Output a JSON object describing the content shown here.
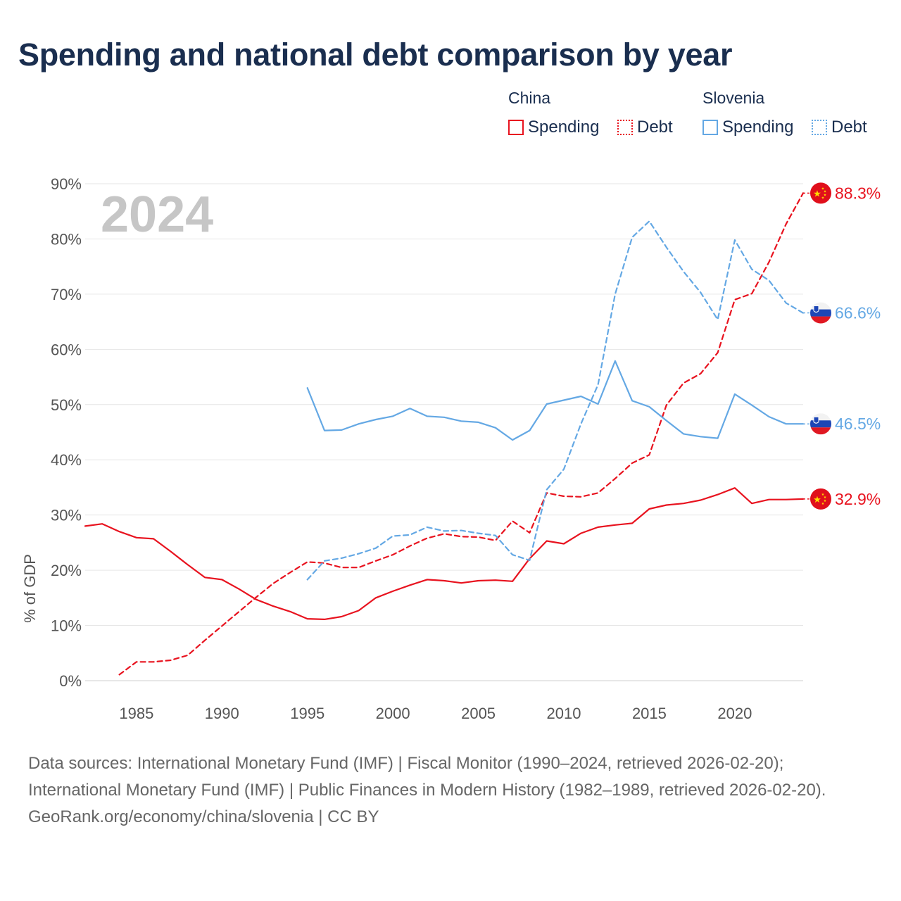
{
  "title": "Spending and national debt comparison by year",
  "legend": {
    "groups": [
      {
        "name": "China",
        "spending": "Spending",
        "debt": "Debt"
      },
      {
        "name": "Slovenia",
        "spending": "Spending",
        "debt": "Debt"
      }
    ]
  },
  "colors": {
    "china": "#e8131f",
    "slovenia": "#64a8e4",
    "title": "#1a2e4f"
  },
  "footer": {
    "sources": "Data sources: International Monetary Fund (IMF) | Fiscal Monitor (1990–2024, retrieved 2026-02-20); International Monetary Fund (IMF) | Public Finances in Modern History (1982–1989, retrieved 2026-02-20).",
    "credit": "GeoRank.org/economy/china/slovenia | CC BY"
  },
  "chart_data": {
    "type": "line",
    "year_label": "2024",
    "ylabel": "% of GDP",
    "ylim": [
      0,
      90
    ],
    "yticks": [
      0,
      10,
      20,
      30,
      40,
      50,
      60,
      70,
      80,
      90
    ],
    "ytick_labels": [
      "0%",
      "10%",
      "20%",
      "30%",
      "40%",
      "50%",
      "60%",
      "70%",
      "80%",
      "90%"
    ],
    "xlim": [
      1982,
      2024
    ],
    "xticks": [
      1985,
      1990,
      1995,
      2000,
      2005,
      2010,
      2015,
      2020
    ],
    "xtick_labels": [
      "1985",
      "1990",
      "1995",
      "2000",
      "2005",
      "2010",
      "2015",
      "2020"
    ],
    "series": [
      {
        "name": "China Spending",
        "country": "China",
        "style": "solid",
        "end_label": "32.9%",
        "flag": "china-flag",
        "x": [
          1982,
          1983,
          1984,
          1985,
          1986,
          1987,
          1988,
          1989,
          1990,
          1991,
          1992,
          1993,
          1994,
          1995,
          1996,
          1997,
          1998,
          1999,
          2000,
          2001,
          2002,
          2003,
          2004,
          2005,
          2006,
          2007,
          2008,
          2009,
          2010,
          2011,
          2012,
          2013,
          2014,
          2015,
          2016,
          2017,
          2018,
          2019,
          2020,
          2021,
          2022,
          2023,
          2024
        ],
        "y": [
          28.0,
          28.4,
          27.0,
          25.9,
          25.7,
          23.4,
          21.0,
          18.7,
          18.3,
          16.6,
          14.7,
          13.5,
          12.5,
          11.2,
          11.1,
          11.6,
          12.7,
          15.0,
          16.2,
          17.3,
          18.3,
          18.1,
          17.7,
          18.1,
          18.2,
          18.0,
          22.1,
          25.3,
          24.8,
          26.7,
          27.8,
          28.2,
          28.5,
          31.1,
          31.8,
          32.1,
          32.7,
          33.7,
          34.9,
          32.1,
          32.8,
          32.8,
          32.9
        ]
      },
      {
        "name": "China Debt",
        "country": "China",
        "style": "dashed",
        "end_label": "88.3%",
        "flag": "china-flag",
        "x": [
          1984,
          1985,
          1986,
          1987,
          1988,
          1989,
          1990,
          1991,
          1992,
          1993,
          1994,
          1995,
          1996,
          1997,
          1998,
          1999,
          2000,
          2001,
          2002,
          2003,
          2004,
          2005,
          2006,
          2007,
          2008,
          2009,
          2010,
          2011,
          2012,
          2013,
          2014,
          2015,
          2016,
          2017,
          2018,
          2019,
          2020,
          2021,
          2022,
          2023,
          2024
        ],
        "y": [
          1.1,
          3.4,
          3.4,
          3.7,
          4.6,
          7.3,
          9.9,
          12.5,
          15.1,
          17.6,
          19.6,
          21.5,
          21.3,
          20.5,
          20.5,
          21.7,
          22.8,
          24.4,
          25.8,
          26.6,
          26.1,
          26.0,
          25.4,
          28.9,
          26.8,
          34.0,
          33.4,
          33.3,
          34.0,
          36.6,
          39.4,
          40.9,
          49.9,
          53.9,
          55.6,
          59.4,
          69.0,
          70.1,
          75.8,
          82.7,
          88.3
        ]
      },
      {
        "name": "Slovenia Spending",
        "country": "Slovenia",
        "style": "solid",
        "end_label": "46.5%",
        "flag": "slovenia-flag",
        "x": [
          1995,
          1996,
          1997,
          1998,
          1999,
          2000,
          2001,
          2002,
          2003,
          2004,
          2005,
          2006,
          2007,
          2008,
          2009,
          2010,
          2011,
          2012,
          2013,
          2014,
          2015,
          2016,
          2017,
          2018,
          2019,
          2020,
          2021,
          2022,
          2023,
          2024
        ],
        "y": [
          53.0,
          45.3,
          45.4,
          46.5,
          47.3,
          47.9,
          49.3,
          47.9,
          47.7,
          47.0,
          46.8,
          45.8,
          43.6,
          45.3,
          50.1,
          50.8,
          51.5,
          50.1,
          57.9,
          50.7,
          49.6,
          47.1,
          44.7,
          44.2,
          43.9,
          51.9,
          49.9,
          47.8,
          46.5,
          46.5
        ]
      },
      {
        "name": "Slovenia Debt",
        "country": "Slovenia",
        "style": "dashed",
        "end_label": "66.6%",
        "flag": "slovenia-flag",
        "x": [
          1995,
          1996,
          1997,
          1998,
          1999,
          2000,
          2001,
          2002,
          2003,
          2004,
          2005,
          2006,
          2007,
          2008,
          2009,
          2010,
          2011,
          2012,
          2013,
          2014,
          2015,
          2016,
          2017,
          2018,
          2019,
          2020,
          2021,
          2022,
          2023,
          2024
        ],
        "y": [
          18.3,
          21.7,
          22.2,
          23.0,
          24.0,
          26.2,
          26.4,
          27.8,
          27.1,
          27.2,
          26.7,
          26.3,
          22.8,
          21.8,
          34.6,
          38.3,
          46.5,
          53.6,
          70.0,
          80.3,
          83.2,
          78.5,
          74.1,
          70.3,
          65.4,
          79.8,
          74.5,
          72.5,
          68.4,
          66.6
        ]
      }
    ]
  }
}
